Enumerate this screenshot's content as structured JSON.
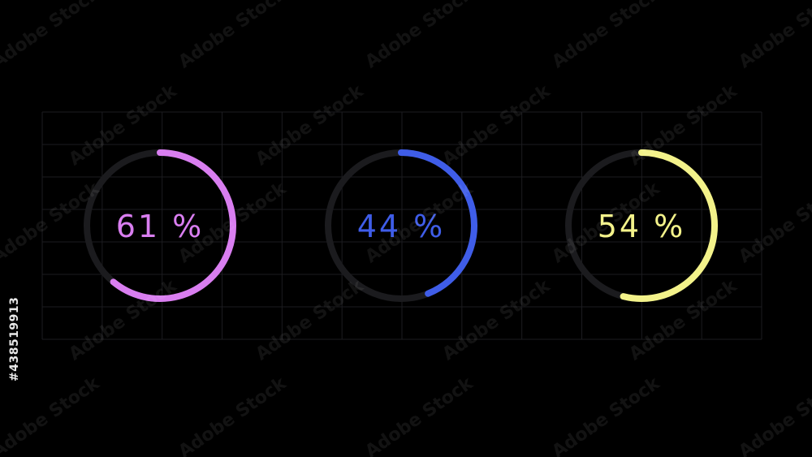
{
  "chart_data": {
    "type": "progress-ring",
    "items": [
      {
        "value": 61,
        "label": "61 %",
        "color": "#d97ef0"
      },
      {
        "value": 44,
        "label": "44 %",
        "color": "#3f5de8"
      },
      {
        "value": 54,
        "label": "54 %",
        "color": "#f3f28a"
      }
    ],
    "track_color": "#1b1b1e",
    "grid": true,
    "grid_color": "#1c1c20"
  },
  "watermark": {
    "text": "Adobe Stock",
    "id": "#438519913"
  }
}
